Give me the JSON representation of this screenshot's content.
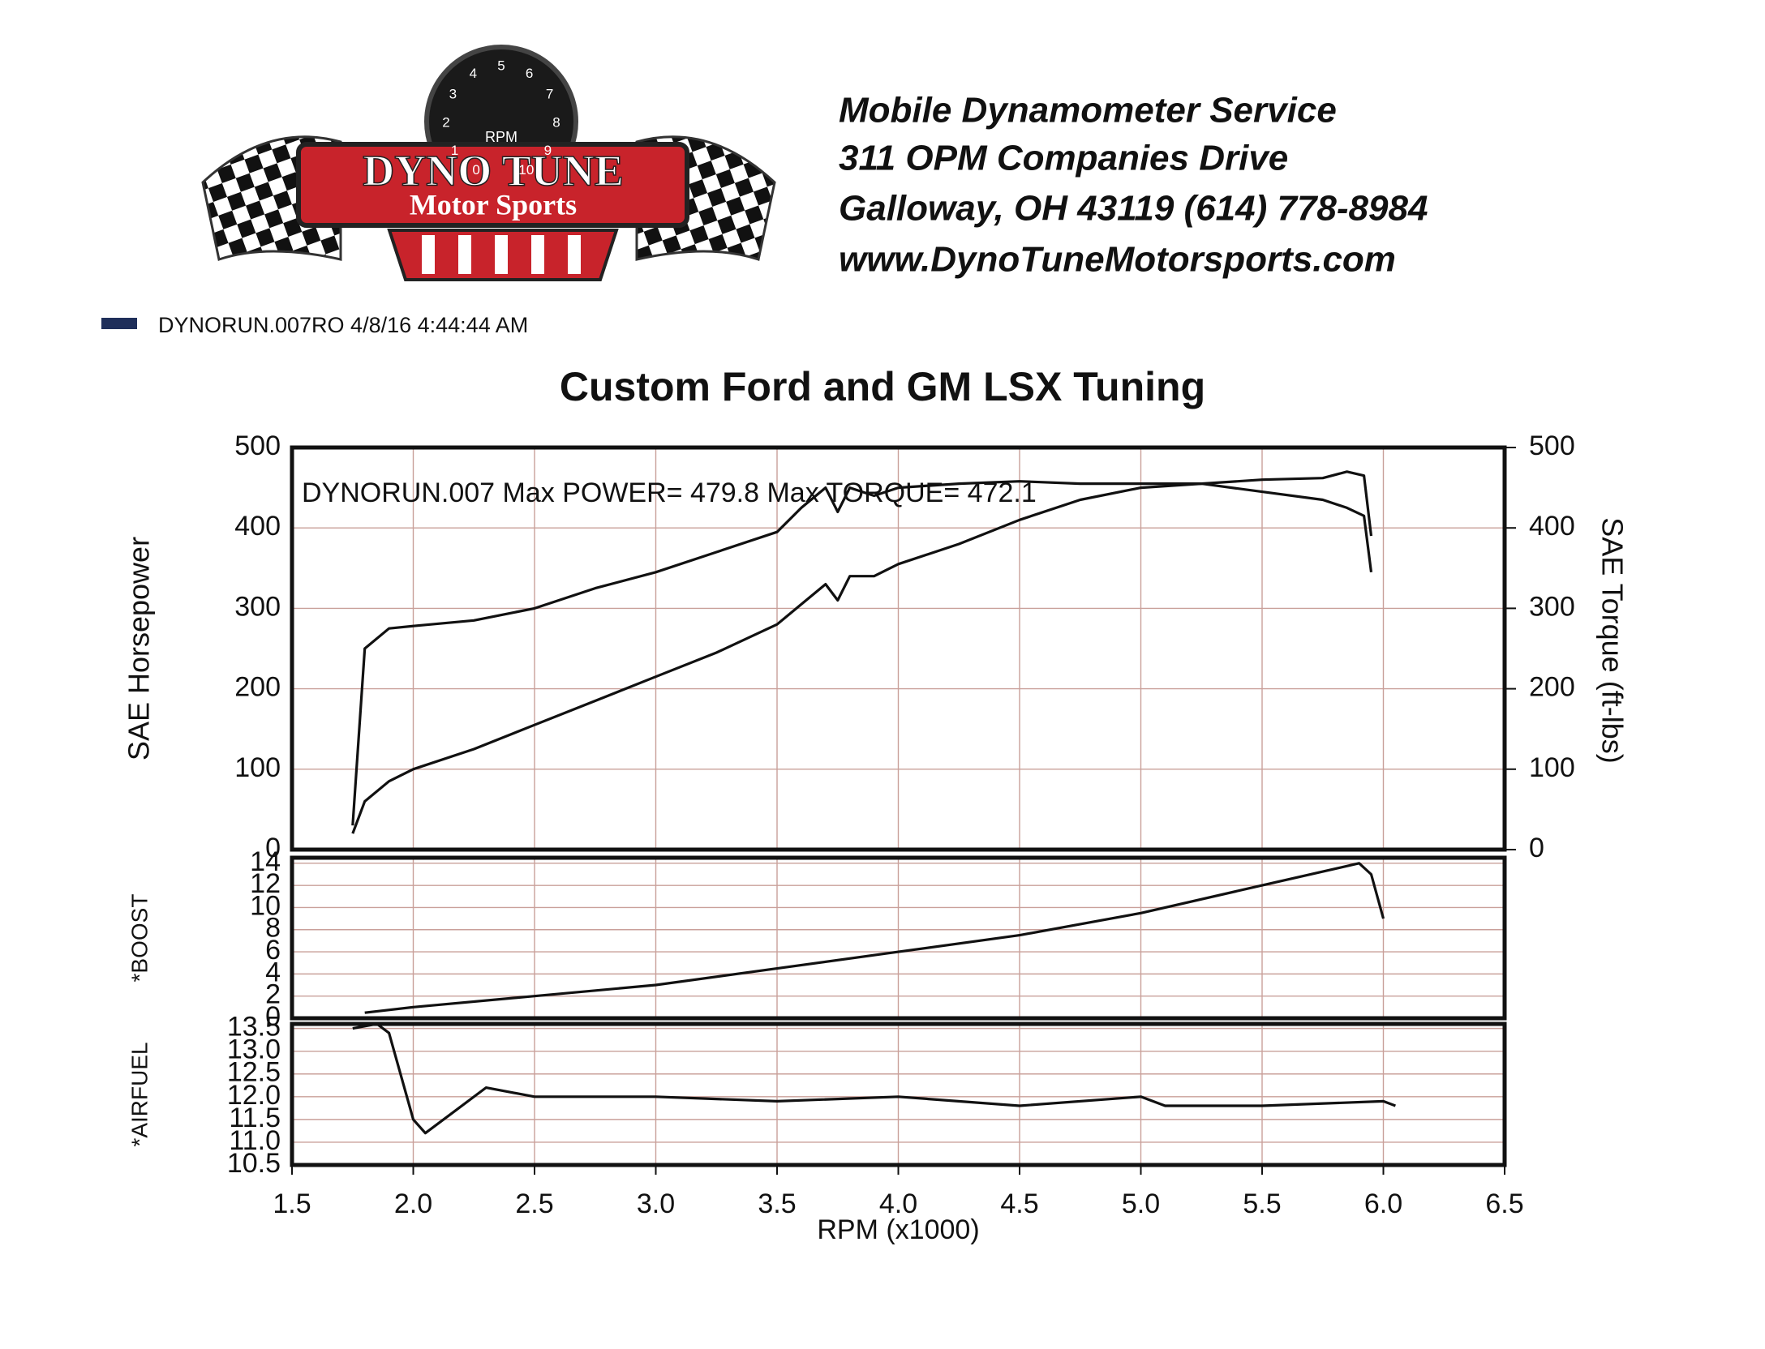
{
  "header": {
    "logo_title": "DYNO TUNE",
    "logo_subtitle": "Motor Sports",
    "gauge_label": "RPM",
    "gauge_digits": [
      "0",
      "1",
      "2",
      "3",
      "4",
      "5",
      "6",
      "7",
      "8",
      "9",
      "10"
    ],
    "lines": [
      "Mobile Dynamometer Service",
      "311 OPM Companies Drive",
      "Galloway, OH  43119   (614) 778-8984",
      "www.DynoTuneMotorsports.com"
    ]
  },
  "legend": {
    "run": "DYNORUN.007RO  4/8/16 4:44:44 AM",
    "color": "#1f2f5a"
  },
  "chart_data": [
    {
      "type": "line",
      "title": "Custom Ford and GM LSX Tuning",
      "annotation": "DYNORUN.007  Max POWER= 479.8     Max TORQUE= 472.1",
      "ylabel": "SAE Horsepower",
      "y2label": "SAE Torque (ft-lbs)",
      "xlim": [
        1.5,
        6.5
      ],
      "ylim": [
        0,
        500
      ],
      "yticks": [
        0,
        100,
        200,
        300,
        400,
        500
      ],
      "y2lim": [
        0,
        500
      ],
      "y2ticks": [
        0,
        100,
        200,
        300,
        400,
        500
      ],
      "grid": true,
      "x": [
        1.75,
        1.8,
        1.9,
        2.0,
        2.25,
        2.5,
        2.75,
        3.0,
        3.25,
        3.5,
        3.6,
        3.7,
        3.75,
        3.8,
        3.9,
        4.0,
        4.25,
        4.5,
        4.75,
        5.0,
        5.25,
        5.5,
        5.75,
        5.85,
        5.92,
        5.95
      ],
      "series": [
        {
          "color": "#111111",
          "values": [
            20,
            60,
            85,
            100,
            125,
            155,
            185,
            215,
            245,
            280,
            305,
            330,
            310,
            340,
            340,
            355,
            380,
            410,
            435,
            450,
            455,
            460,
            462,
            470,
            465,
            390
          ]
        },
        {
          "color": "#111111",
          "axis": "y2",
          "values": [
            30,
            250,
            275,
            278,
            285,
            300,
            325,
            345,
            370,
            395,
            425,
            450,
            420,
            450,
            440,
            450,
            455,
            458,
            455,
            455,
            455,
            445,
            435,
            425,
            415,
            345
          ]
        }
      ]
    },
    {
      "type": "line",
      "ylabel": "*BOOST",
      "xlim": [
        1.5,
        6.5
      ],
      "ylim": [
        0,
        14.5
      ],
      "yticks": [
        0,
        2,
        4,
        6,
        8,
        10,
        12,
        14
      ],
      "grid": true,
      "x": [
        1.8,
        2.0,
        2.5,
        3.0,
        3.5,
        4.0,
        4.5,
        5.0,
        5.5,
        5.8,
        5.9,
        5.95,
        6.0
      ],
      "series": [
        {
          "color": "#111111",
          "values": [
            0.5,
            1,
            2,
            3,
            4.5,
            6,
            7.5,
            9.5,
            12,
            13.5,
            14,
            13,
            9
          ]
        }
      ]
    },
    {
      "type": "line",
      "ylabel": "*AIRFUEL",
      "xlabel": "RPM (x1000)",
      "xlim": [
        1.5,
        6.5
      ],
      "ylim": [
        10.5,
        13.6
      ],
      "yticks": [
        {
          "value": 10.5,
          "label": "10.5"
        },
        {
          "value": 11,
          "label": "11.0"
        },
        {
          "value": 11.5,
          "label": "11.5"
        },
        {
          "value": 12,
          "label": "12.0"
        },
        {
          "value": 12.5,
          "label": "12.5"
        },
        {
          "value": 13,
          "label": "13.0"
        },
        {
          "value": 13.5,
          "label": "13.5"
        }
      ],
      "xticks": [
        1.5,
        {
          "value": 2,
          "label": "2.0"
        },
        2.5,
        {
          "value": 3,
          "label": "3.0"
        },
        3.5,
        {
          "value": 4,
          "label": "4.0"
        },
        4.5,
        {
          "value": 5,
          "label": "5.0"
        },
        5.5,
        {
          "value": 6,
          "label": "6.0"
        },
        6.5
      ],
      "grid": true,
      "x": [
        1.75,
        1.85,
        1.9,
        2.0,
        2.05,
        2.15,
        2.3,
        2.5,
        3.0,
        3.5,
        4.0,
        4.5,
        5.0,
        5.1,
        5.5,
        6.0,
        6.05
      ],
      "series": [
        {
          "color": "#111111",
          "values": [
            13.5,
            13.6,
            13.4,
            11.5,
            11.2,
            11.6,
            12.2,
            12.0,
            12.0,
            11.9,
            12.0,
            11.8,
            12.0,
            11.8,
            11.8,
            11.9,
            11.8
          ]
        }
      ]
    }
  ]
}
